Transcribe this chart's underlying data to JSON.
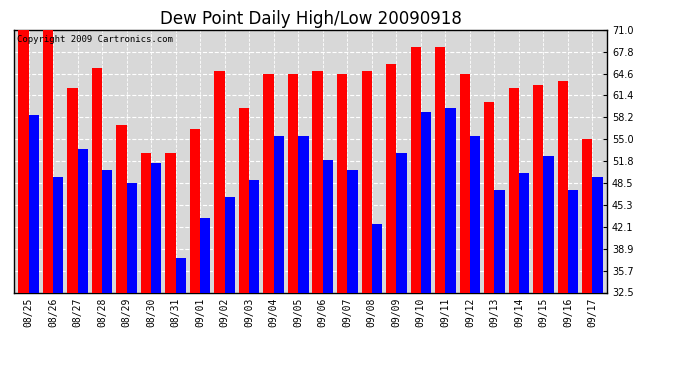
{
  "title": "Dew Point Daily High/Low 20090918",
  "copyright": "Copyright 2009 Cartronics.com",
  "dates": [
    "08/25",
    "08/26",
    "08/27",
    "08/28",
    "08/29",
    "08/30",
    "08/31",
    "09/01",
    "09/02",
    "09/03",
    "09/04",
    "09/05",
    "09/06",
    "09/07",
    "09/08",
    "09/09",
    "09/10",
    "09/11",
    "09/12",
    "09/13",
    "09/14",
    "09/15",
    "09/16",
    "09/17"
  ],
  "highs": [
    71.0,
    71.0,
    62.5,
    65.5,
    57.0,
    53.0,
    53.0,
    56.5,
    65.0,
    59.5,
    64.6,
    64.6,
    65.0,
    64.6,
    65.0,
    66.0,
    68.5,
    68.5,
    64.6,
    60.5,
    62.5,
    63.0,
    63.5,
    55.0
  ],
  "lows": [
    58.5,
    49.5,
    53.5,
    50.5,
    48.5,
    51.5,
    37.5,
    43.5,
    46.5,
    49.0,
    55.5,
    55.5,
    52.0,
    50.5,
    42.5,
    53.0,
    59.0,
    59.5,
    55.5,
    47.5,
    50.0,
    52.5,
    47.5,
    49.5
  ],
  "high_color": "#FF0000",
  "low_color": "#0000FF",
  "bg_color": "#FFFFFF",
  "plot_bg_color": "#D8D8D8",
  "grid_color": "#FFFFFF",
  "ymin": 32.5,
  "ymax": 71.0,
  "yticks": [
    32.5,
    35.7,
    38.9,
    42.1,
    45.3,
    48.5,
    51.8,
    55.0,
    58.2,
    61.4,
    64.6,
    67.8,
    71.0
  ],
  "bar_width": 0.42,
  "title_fontsize": 12,
  "tick_fontsize": 7,
  "copyright_fontsize": 6.5
}
